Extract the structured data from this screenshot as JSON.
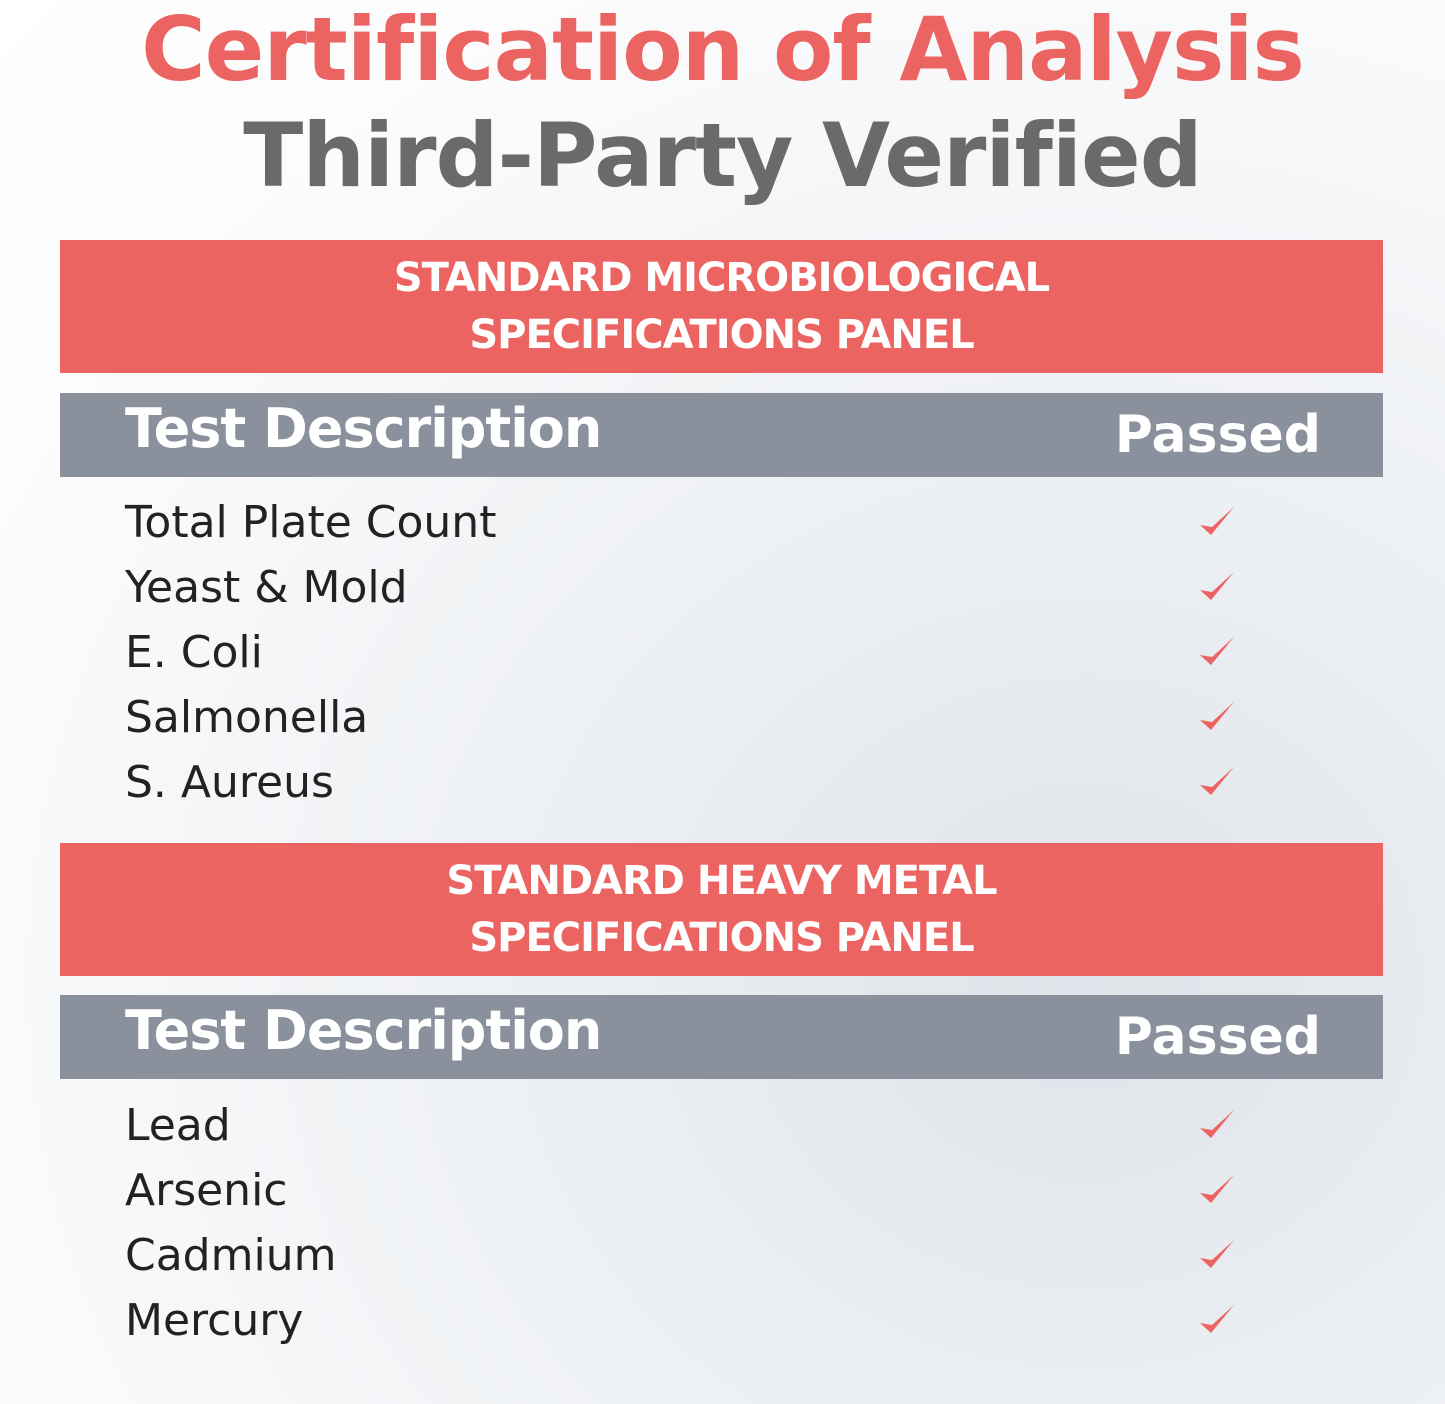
{
  "title": {
    "line1": "Certification of Analysis",
    "line2": "Third-Party Verified"
  },
  "colors": {
    "accent": "#ec6461",
    "header_bar": "#8a909c",
    "subtitle": "#6a6a6a"
  },
  "panels": [
    {
      "heading_line1": "STANDARD MICROBIOLOGICAL",
      "heading_line2": "SPECIFICATIONS PANEL",
      "col_description": "Test Description",
      "col_passed": "Passed",
      "rows": [
        {
          "test": "Total Plate Count",
          "passed": true
        },
        {
          "test": "Yeast & Mold",
          "passed": true
        },
        {
          "test": "E. Coli",
          "passed": true
        },
        {
          "test": "Salmonella",
          "passed": true
        },
        {
          "test": "S. Aureus",
          "passed": true
        }
      ]
    },
    {
      "heading_line1": "STANDARD HEAVY METAL",
      "heading_line2": "SPECIFICATIONS PANEL",
      "col_description": "Test Description",
      "col_passed": "Passed",
      "rows": [
        {
          "test": "Lead",
          "passed": true
        },
        {
          "test": "Arsenic",
          "passed": true
        },
        {
          "test": "Cadmium",
          "passed": true
        },
        {
          "test": "Mercury",
          "passed": true
        }
      ]
    }
  ],
  "icons": {
    "passed": "checkmark-icon"
  }
}
